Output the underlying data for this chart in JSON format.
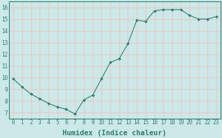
{
  "xlabel": "Humidex (Indice chaleur)",
  "x": [
    0,
    1,
    2,
    3,
    4,
    5,
    6,
    7,
    8,
    9,
    10,
    11,
    12,
    13,
    14,
    15,
    16,
    17,
    18,
    19,
    20,
    21,
    22,
    23
  ],
  "y": [
    9.9,
    9.2,
    8.6,
    8.2,
    7.8,
    7.5,
    7.3,
    6.9,
    8.1,
    8.5,
    9.9,
    11.3,
    11.6,
    12.9,
    14.9,
    14.8,
    15.7,
    15.8,
    15.8,
    15.8,
    15.3,
    15.0,
    15.0,
    15.2
  ],
  "line_color": "#2e7d6e",
  "marker": "D",
  "marker_size": 2.0,
  "bg_color": "#cce8e8",
  "grid_color": "#e8c8c8",
  "ylim": [
    6.5,
    16.5
  ],
  "xlim": [
    -0.5,
    23.5
  ],
  "yticks": [
    7,
    8,
    9,
    10,
    11,
    12,
    13,
    14,
    15,
    16
  ],
  "xticks": [
    0,
    1,
    2,
    3,
    4,
    5,
    6,
    7,
    8,
    9,
    10,
    11,
    12,
    13,
    14,
    15,
    16,
    17,
    18,
    19,
    20,
    21,
    22,
    23
  ],
  "tick_label_fontsize": 5.5,
  "xlabel_fontsize": 7.5,
  "axis_color": "#2e7d6e",
  "label_color": "#2e7d6e",
  "spine_color": "#2e7d6e"
}
